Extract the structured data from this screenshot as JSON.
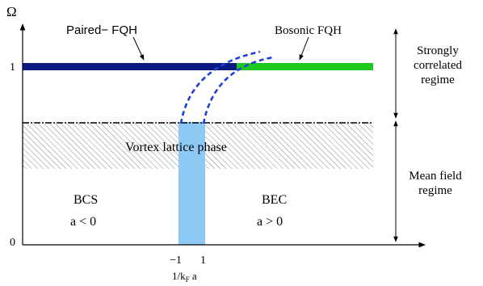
{
  "diagram": {
    "y_axis": {
      "label": "Ω",
      "tick_top": "1",
      "tick_bottom": "0"
    },
    "x_axis": {
      "tick_left": "−1",
      "tick_right": "1",
      "label_main": "1/k",
      "label_sub": "F",
      "label_tail": " a"
    },
    "phases": {
      "paired_fqh": "Paired− FQH",
      "bosonic_fqh": "Bosonic FQH",
      "vortex_lattice": "Vortex lattice phase",
      "bcs": "BCS",
      "bcs_condition": "a < 0",
      "bec": "BEC",
      "bec_condition": "a > 0"
    },
    "regimes": {
      "strongly_line1": "Strongly",
      "strongly_line2": "correlated",
      "strongly_line3": "regime",
      "mean_line1": "Mean field",
      "mean_line2": "regime"
    },
    "colors": {
      "paired_bar": "#0a1a82",
      "bosonic_bar": "#1ec81e",
      "crossover_band": "#8ec8f4",
      "dashed_curves": "#1f3fd8",
      "axes": "#000000"
    }
  }
}
